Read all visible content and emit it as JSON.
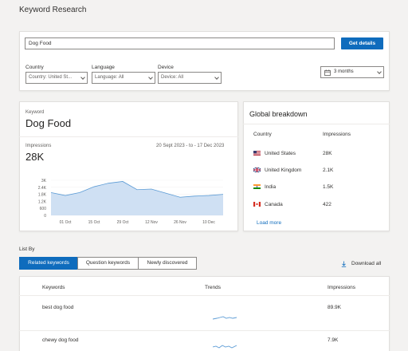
{
  "page": {
    "title": "Keyword Research"
  },
  "search": {
    "value": "Dog Food",
    "button_label": "Get details"
  },
  "filters": {
    "country_label": "Country",
    "country_value": "Country: United St...",
    "language_label": "Language",
    "language_value": "Language: All",
    "device_label": "Device",
    "device_value": "Device: All",
    "period_value": "3 months"
  },
  "overview": {
    "keyword_label": "Keyword",
    "keyword": "Dog Food",
    "impressions_label": "Impressions",
    "impressions_value": "28K",
    "date_range": "20 Sept 2023 - to - 17 Dec 2023"
  },
  "chart_data": {
    "type": "area",
    "x": [
      "24 Sep",
      "01 Oct",
      "08 Oct",
      "15 Oct",
      "22 Oct",
      "29 Oct",
      "05 Nov",
      "12 Nov",
      "19 Nov",
      "26 Nov",
      "03 Dec",
      "10 Dec",
      "17 Dec"
    ],
    "x_tick_labels": [
      "01 Oct",
      "15 Oct",
      "29 Oct",
      "12 Nov",
      "26 Nov",
      "10 Dec"
    ],
    "y_tick_labels": [
      "3K",
      "2.4K",
      "1.8K",
      "1.2K",
      "600",
      "0"
    ],
    "values": [
      1950,
      1700,
      1950,
      2450,
      2750,
      2900,
      2200,
      2250,
      1900,
      1550,
      1650,
      1700,
      1800
    ],
    "ylim": [
      0,
      3000
    ],
    "color": "#cfe0f3",
    "line_color": "#5b9bd5"
  },
  "global": {
    "title": "Global breakdown",
    "col_country": "Country",
    "col_impressions": "Impressions",
    "rows": [
      {
        "country": "United States",
        "impressions": "28K",
        "flag": "us-flag-icon"
      },
      {
        "country": "United Kingdom",
        "impressions": "2.1K",
        "flag": "uk-flag-icon"
      },
      {
        "country": "India",
        "impressions": "1.5K",
        "flag": "india-flag-icon"
      },
      {
        "country": "Canada",
        "impressions": "422",
        "flag": "canada-flag-icon"
      }
    ],
    "load_more": "Load more"
  },
  "listby": {
    "label": "List By",
    "tabs": [
      "Related keywords",
      "Question keywords",
      "Newly discovered"
    ],
    "download": "Download all",
    "col_keywords": "Keywords",
    "col_trends": "Trends",
    "col_impressions": "Impressions",
    "rows": [
      {
        "keyword": "best dog food",
        "impressions": "89.9K"
      },
      {
        "keyword": "chewy dog food",
        "impressions": "7.9K"
      }
    ]
  },
  "colors": {
    "accent": "#0f6cbd",
    "link": "#0f6cbd"
  }
}
